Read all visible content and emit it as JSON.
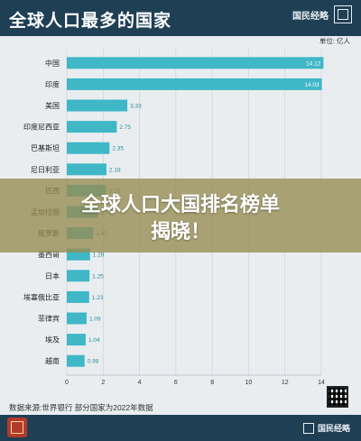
{
  "header": {
    "title": "全球人口最多的国家",
    "brand": "国民经略"
  },
  "chart_data": {
    "type": "bar",
    "orientation": "horizontal",
    "unit_label": "单位: 亿人",
    "categories": [
      "中国",
      "印度",
      "美国",
      "印度尼西亚",
      "巴基斯坦",
      "尼日利亚",
      "巴西",
      "孟加拉国",
      "俄罗斯",
      "墨西哥",
      "日本",
      "埃塞俄比亚",
      "菲律宾",
      "埃及",
      "越南"
    ],
    "values": [
      14.12,
      14.03,
      3.33,
      2.75,
      2.35,
      2.18,
      2.15,
      1.71,
      1.45,
      1.28,
      1.25,
      1.23,
      1.09,
      1.04,
      0.98
    ],
    "value_labels": [
      "14.12",
      "14.03",
      "3.33",
      "2.75",
      "2.35",
      "2.18",
      "2.15",
      "1.71",
      "1.45",
      "1.28",
      "1.25",
      "1.23",
      "1.09",
      "1.04",
      "0.98"
    ],
    "xlim": [
      0,
      14
    ],
    "xticks": [
      0,
      2,
      4,
      6,
      8,
      10,
      12,
      14
    ],
    "grid": true,
    "bar_color": "#3fb7c7"
  },
  "overlay": {
    "line1": "全球人口大国排名榜单",
    "line2": "揭晓！"
  },
  "footer": {
    "source": "数据来源:世界银行 部分国家为2022年数据",
    "brand": "国民经略"
  }
}
